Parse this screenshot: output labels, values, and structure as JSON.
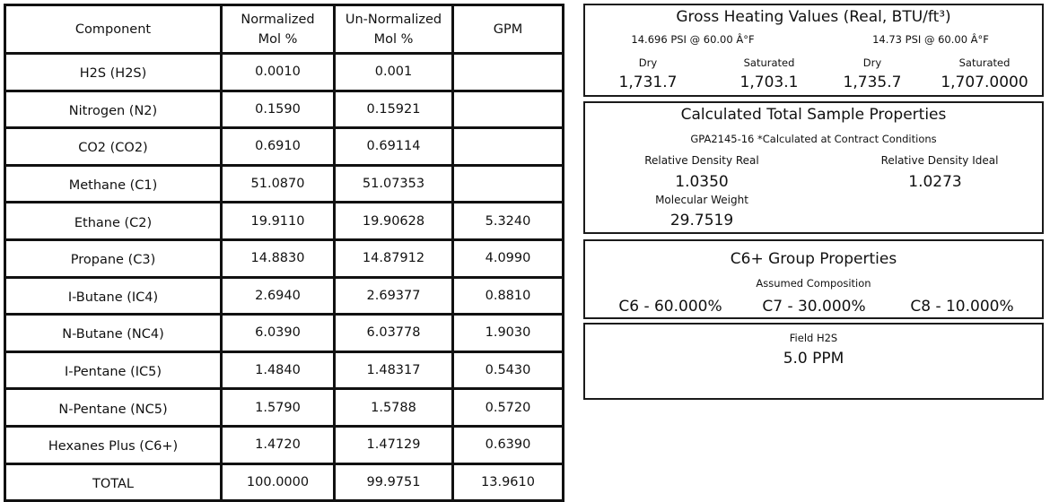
{
  "table": {
    "headers": {
      "component": "Component",
      "normalized": "Normalized\nMol %",
      "unnormalized": "Un-Normalized\nMol %",
      "gpm": "GPM"
    },
    "rows": [
      {
        "component": "H2S (H2S)",
        "normalized": "0.0010",
        "unnormalized": "0.001",
        "gpm": ""
      },
      {
        "component": "Nitrogen (N2)",
        "normalized": "0.1590",
        "unnormalized": "0.15921",
        "gpm": ""
      },
      {
        "component": "CO2 (CO2)",
        "normalized": "0.6910",
        "unnormalized": "0.69114",
        "gpm": ""
      },
      {
        "component": "Methane (C1)",
        "normalized": "51.0870",
        "unnormalized": "51.07353",
        "gpm": ""
      },
      {
        "component": "Ethane (C2)",
        "normalized": "19.9110",
        "unnormalized": "19.90628",
        "gpm": "5.3240"
      },
      {
        "component": "Propane (C3)",
        "normalized": "14.8830",
        "unnormalized": "14.87912",
        "gpm": "4.0990"
      },
      {
        "component": "I-Butane (IC4)",
        "normalized": "2.6940",
        "unnormalized": "2.69377",
        "gpm": "0.8810"
      },
      {
        "component": "N-Butane (NC4)",
        "normalized": "6.0390",
        "unnormalized": "6.03778",
        "gpm": "1.9030"
      },
      {
        "component": "I-Pentane (IC5)",
        "normalized": "1.4840",
        "unnormalized": "1.48317",
        "gpm": "0.5430"
      },
      {
        "component": "N-Pentane (NC5)",
        "normalized": "1.5790",
        "unnormalized": "1.5788",
        "gpm": "0.5720"
      },
      {
        "component": "Hexanes Plus (C6+)",
        "normalized": "1.4720",
        "unnormalized": "1.47129",
        "gpm": "0.6390"
      },
      {
        "component": "TOTAL",
        "normalized": "100.0000",
        "unnormalized": "99.9751",
        "gpm": "13.9610"
      }
    ]
  },
  "heating": {
    "title": "Gross Heating Values (Real, BTU/ft³)",
    "cond1": "14.696 PSI @ 60.00 Â°F",
    "cond2": "14.73 PSI @ 60.00 Â°F",
    "dry_label": "Dry",
    "sat_label": "Saturated",
    "dry1": "1,731.7",
    "sat1": "1,703.1",
    "dry2": "1,735.7",
    "sat2": "1,707.0000"
  },
  "sample": {
    "title": "Calculated Total Sample Properties",
    "subtitle": "GPA2145-16 *Calculated at Contract Conditions",
    "rd_real_label": "Relative Density Real",
    "rd_real": "1.0350",
    "rd_ideal_label": "Relative Density Ideal",
    "rd_ideal": "1.0273",
    "mw_label": "Molecular Weight",
    "mw": "29.7519"
  },
  "c6": {
    "title": "C6+ Group Properties",
    "subtitle": "Assumed Composition",
    "c6": "C6 - 60.000%",
    "c7": "C7 - 30.000%",
    "c8": "C8 - 10.000%"
  },
  "h2s": {
    "title": "Field H2S",
    "value": "5.0 PPM"
  }
}
